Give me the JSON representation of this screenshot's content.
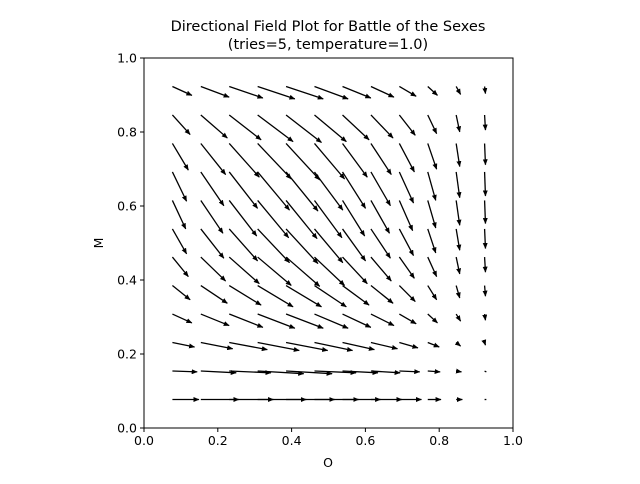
{
  "chart_data": {
    "type": "quiver",
    "title": "Directional Field Plot for Battle of the Sexes",
    "subtitle": "(tries=5, temperature=1.0)",
    "xlabel": "O",
    "ylabel": "M",
    "xlim": [
      0.0,
      1.0
    ],
    "ylim": [
      0.0,
      1.0
    ],
    "xticks": [
      "0.0",
      "0.2",
      "0.4",
      "0.6",
      "0.8",
      "1.0"
    ],
    "yticks": [
      "0.0",
      "0.2",
      "0.4",
      "0.6",
      "0.8",
      "1.0"
    ],
    "grid": false,
    "arrow_color": "#000000",
    "x": [
      0.077,
      0.154,
      0.231,
      0.308,
      0.385,
      0.462,
      0.538,
      0.615,
      0.692,
      0.769,
      0.846,
      0.923
    ],
    "y": [
      0.077,
      0.154,
      0.231,
      0.308,
      0.385,
      0.462,
      0.538,
      0.615,
      0.692,
      0.769,
      0.846,
      0.923
    ],
    "vector_note": "u,v rows ordered by y ascending, columns by x ascending",
    "u": [
      [
        0.03,
        0.043,
        0.05,
        0.055,
        0.055,
        0.05,
        0.043,
        0.035,
        0.025,
        0.015,
        0.007,
        0.002
      ],
      [
        0.028,
        0.04,
        0.047,
        0.052,
        0.052,
        0.047,
        0.04,
        0.033,
        0.023,
        0.014,
        0.006,
        0.002
      ],
      [
        0.025,
        0.036,
        0.043,
        0.047,
        0.047,
        0.043,
        0.036,
        0.03,
        0.021,
        0.013,
        0.005,
        0.001
      ],
      [
        0.022,
        0.032,
        0.038,
        0.042,
        0.042,
        0.038,
        0.032,
        0.026,
        0.019,
        0.011,
        0.005,
        0.001
      ],
      [
        0.02,
        0.03,
        0.036,
        0.04,
        0.04,
        0.036,
        0.03,
        0.025,
        0.018,
        0.01,
        0.004,
        0.001
      ],
      [
        0.018,
        0.028,
        0.034,
        0.038,
        0.038,
        0.034,
        0.028,
        0.023,
        0.017,
        0.01,
        0.004,
        0.001
      ],
      [
        0.016,
        0.026,
        0.032,
        0.036,
        0.036,
        0.032,
        0.026,
        0.022,
        0.016,
        0.009,
        0.004,
        0.001
      ],
      [
        0.015,
        0.025,
        0.031,
        0.035,
        0.035,
        0.031,
        0.025,
        0.021,
        0.015,
        0.009,
        0.004,
        0.001
      ],
      [
        0.016,
        0.026,
        0.032,
        0.036,
        0.036,
        0.032,
        0.026,
        0.022,
        0.016,
        0.009,
        0.004,
        0.001
      ],
      [
        0.018,
        0.028,
        0.034,
        0.038,
        0.038,
        0.034,
        0.028,
        0.023,
        0.017,
        0.01,
        0.004,
        0.001
      ],
      [
        0.02,
        0.03,
        0.036,
        0.04,
        0.04,
        0.036,
        0.03,
        0.025,
        0.018,
        0.01,
        0.004,
        0.001
      ],
      [
        0.022,
        0.032,
        0.038,
        0.042,
        0.042,
        0.038,
        0.032,
        0.026,
        0.019,
        0.011,
        0.005,
        0.001
      ]
    ],
    "v": [
      [
        0.0,
        0.0,
        0.0,
        0.0,
        0.0,
        0.0,
        0.0,
        0.0,
        0.0,
        0.0,
        0.0,
        0.0
      ],
      [
        -0.001,
        -0.002,
        -0.002,
        -0.003,
        -0.003,
        -0.002,
        -0.002,
        -0.002,
        -0.001,
        -0.001,
        -0.001,
        -0.001
      ],
      [
        -0.005,
        -0.007,
        -0.008,
        -0.009,
        -0.009,
        -0.009,
        -0.008,
        -0.007,
        -0.006,
        -0.005,
        -0.004,
        -0.003
      ],
      [
        -0.01,
        -0.013,
        -0.015,
        -0.016,
        -0.016,
        -0.016,
        -0.015,
        -0.013,
        -0.011,
        -0.01,
        -0.008,
        -0.007
      ],
      [
        -0.016,
        -0.02,
        -0.022,
        -0.024,
        -0.024,
        -0.024,
        -0.022,
        -0.02,
        -0.018,
        -0.016,
        -0.014,
        -0.012
      ],
      [
        -0.022,
        -0.027,
        -0.03,
        -0.032,
        -0.033,
        -0.032,
        -0.03,
        -0.027,
        -0.024,
        -0.022,
        -0.019,
        -0.017
      ],
      [
        -0.028,
        -0.033,
        -0.036,
        -0.038,
        -0.039,
        -0.038,
        -0.036,
        -0.033,
        -0.03,
        -0.027,
        -0.024,
        -0.022
      ],
      [
        -0.032,
        -0.037,
        -0.04,
        -0.042,
        -0.043,
        -0.042,
        -0.04,
        -0.037,
        -0.034,
        -0.031,
        -0.028,
        -0.026
      ],
      [
        -0.033,
        -0.038,
        -0.041,
        -0.043,
        -0.044,
        -0.043,
        -0.041,
        -0.038,
        -0.035,
        -0.032,
        -0.029,
        -0.027
      ],
      [
        -0.03,
        -0.035,
        -0.038,
        -0.04,
        -0.041,
        -0.04,
        -0.038,
        -0.035,
        -0.032,
        -0.029,
        -0.026,
        -0.024
      ],
      [
        -0.022,
        -0.026,
        -0.028,
        -0.03,
        -0.031,
        -0.03,
        -0.028,
        -0.026,
        -0.023,
        -0.021,
        -0.019,
        -0.017
      ],
      [
        -0.01,
        -0.012,
        -0.013,
        -0.014,
        -0.014,
        -0.014,
        -0.013,
        -0.012,
        -0.011,
        -0.01,
        -0.009,
        -0.008
      ]
    ]
  }
}
